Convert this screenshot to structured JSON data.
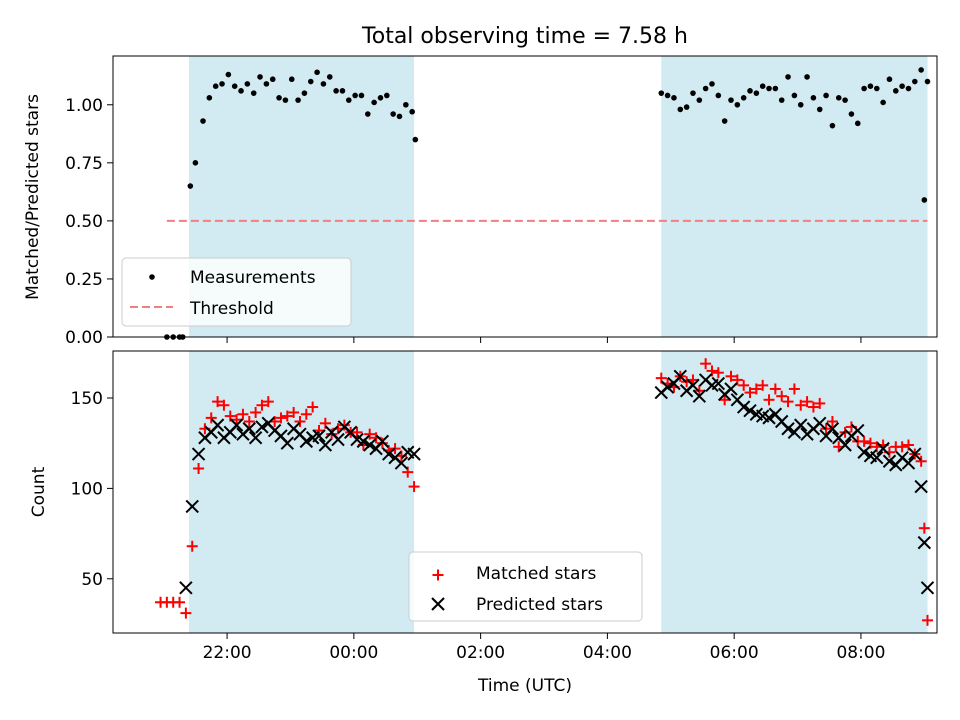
{
  "figure": {
    "title": "Total observing time = 7.58 h",
    "xlabel": "Time (UTC)"
  },
  "colors": {
    "shade": "#add8e6",
    "measurement": "#000000",
    "threshold": "#f08080",
    "matched": "#ff0000",
    "predicted": "#000000"
  },
  "chart_data": [
    {
      "type": "scatter",
      "ylabel": "Matched/Predicted stars",
      "ylim": [
        0,
        1.21
      ],
      "yticks": [
        0.0,
        0.25,
        0.5,
        0.75,
        1.0
      ],
      "ytick_labels": [
        "0.00",
        "0.25",
        "0.50",
        "0.75",
        "1.00"
      ],
      "xlim_hours_utc": [
        20.2,
        33.2
      ],
      "xtick_hours": [
        22,
        24,
        26,
        28,
        30,
        32
      ],
      "xtick_labels": [],
      "shaded_spans_hours": [
        [
          21.4,
          24.95
        ],
        [
          28.85,
          33.05
        ]
      ],
      "legend_position": "lower-left",
      "legend": [
        {
          "label": "Measurements",
          "marker": "dot"
        },
        {
          "label": "Threshold",
          "marker": "dashed-line"
        }
      ],
      "threshold": {
        "value": 0.5,
        "x_range_hours": [
          21.05,
          33.05
        ]
      },
      "series": [
        {
          "name": "Measurements",
          "x": [
            21.05,
            21.15,
            21.25,
            21.3,
            21.42,
            21.5,
            21.62,
            21.72,
            21.82,
            21.92,
            22.02,
            22.12,
            22.22,
            22.32,
            22.42,
            22.52,
            22.62,
            22.72,
            22.82,
            22.92,
            23.02,
            23.12,
            23.22,
            23.32,
            23.42,
            23.52,
            23.62,
            23.72,
            23.82,
            23.92,
            24.02,
            24.12,
            24.22,
            24.32,
            24.42,
            24.52,
            24.62,
            24.72,
            24.82,
            24.92,
            24.97,
            28.85,
            28.95,
            29.05,
            29.15,
            29.25,
            29.35,
            29.45,
            29.55,
            29.65,
            29.75,
            29.85,
            29.95,
            30.05,
            30.15,
            30.25,
            30.35,
            30.45,
            30.55,
            30.65,
            30.75,
            30.85,
            30.95,
            31.05,
            31.15,
            31.25,
            31.35,
            31.45,
            31.55,
            31.65,
            31.75,
            31.85,
            31.95,
            32.05,
            32.15,
            32.25,
            32.35,
            32.45,
            32.55,
            32.65,
            32.75,
            32.85,
            32.95,
            33.05
          ],
          "y": [
            0.0,
            0.0,
            0.0,
            0.0,
            0.65,
            0.75,
            0.93,
            1.03,
            1.08,
            1.09,
            1.13,
            1.08,
            1.06,
            1.09,
            1.05,
            1.12,
            1.09,
            1.11,
            1.03,
            1.02,
            1.11,
            1.02,
            1.05,
            1.1,
            1.14,
            1.09,
            1.12,
            1.06,
            1.06,
            1.02,
            1.04,
            1.04,
            0.96,
            1.01,
            1.03,
            1.04,
            0.96,
            0.95,
            1.0,
            0.97,
            0.85,
            1.05,
            1.04,
            1.03,
            0.98,
            0.99,
            1.05,
            1.02,
            1.07,
            1.09,
            1.04,
            0.93,
            1.02,
            1.0,
            1.03,
            1.06,
            1.05,
            1.08,
            1.07,
            1.07,
            1.02,
            1.12,
            1.04,
            1.0,
            1.12,
            1.03,
            0.98,
            1.04,
            0.91,
            1.03,
            1.02,
            0.96,
            0.92,
            1.07,
            1.08,
            1.07,
            1.01,
            1.11,
            1.06,
            1.08,
            1.07,
            1.1,
            1.15,
            1.1
          ],
          "extra_points": {
            "x": [
              33.0
            ],
            "y": [
              0.59
            ]
          }
        }
      ]
    },
    {
      "type": "scatter",
      "ylabel": "Count",
      "xlabel": "Time (UTC)",
      "ylim": [
        20,
        176
      ],
      "yticks": [
        50,
        100,
        150
      ],
      "ytick_labels": [
        "50",
        "100",
        "150"
      ],
      "xlim_hours_utc": [
        20.2,
        33.2
      ],
      "xtick_hours": [
        22,
        24,
        26,
        28,
        30,
        32
      ],
      "xtick_labels": [
        "22:00",
        "00:00",
        "02:00",
        "04:00",
        "06:00",
        "08:00"
      ],
      "shaded_spans_hours": [
        [
          21.4,
          24.95
        ],
        [
          28.85,
          33.05
        ]
      ],
      "legend_position": "lower-center",
      "legend": [
        {
          "label": "Matched stars",
          "marker": "plus"
        },
        {
          "label": "Predicted stars",
          "marker": "x"
        }
      ],
      "series": [
        {
          "name": "Matched stars",
          "x": [
            20.95,
            21.05,
            21.15,
            21.25,
            21.35,
            21.45,
            21.55,
            21.65,
            21.75,
            21.85,
            21.95,
            22.05,
            22.15,
            22.25,
            22.35,
            22.45,
            22.55,
            22.65,
            22.75,
            22.85,
            22.95,
            23.05,
            23.15,
            23.25,
            23.35,
            23.45,
            23.55,
            23.65,
            23.75,
            23.85,
            23.95,
            24.05,
            24.15,
            24.25,
            24.35,
            24.45,
            24.55,
            24.65,
            24.75,
            24.85,
            24.95,
            28.85,
            28.95,
            29.05,
            29.15,
            29.25,
            29.35,
            29.45,
            29.55,
            29.65,
            29.75,
            29.85,
            29.95,
            30.05,
            30.15,
            30.25,
            30.35,
            30.45,
            30.55,
            30.65,
            30.75,
            30.85,
            30.95,
            31.05,
            31.15,
            31.25,
            31.35,
            31.45,
            31.55,
            31.65,
            31.75,
            31.85,
            31.95,
            32.05,
            32.15,
            32.25,
            32.35,
            32.45,
            32.55,
            32.65,
            32.75,
            32.85,
            32.95,
            33.0,
            33.05
          ],
          "y": [
            37,
            37,
            37,
            37,
            31,
            68,
            111,
            133,
            139,
            148,
            146,
            140,
            138,
            141,
            137,
            142,
            146,
            148,
            137,
            139,
            140,
            142,
            137,
            141,
            145,
            132,
            136,
            130,
            133,
            135,
            131,
            131,
            124,
            130,
            128,
            125,
            121,
            122,
            118,
            109,
            101,
            161,
            158,
            156,
            162,
            159,
            160,
            154,
            169,
            165,
            164,
            149,
            162,
            160,
            157,
            153,
            155,
            157,
            149,
            155,
            151,
            148,
            155,
            146,
            148,
            145,
            147,
            133,
            137,
            123,
            131,
            134,
            126,
            126,
            125,
            123,
            124,
            120,
            123,
            123,
            124,
            119,
            115,
            78,
            27
          ]
        },
        {
          "name": "Predicted stars",
          "x": [
            21.35,
            21.45,
            21.55,
            21.65,
            21.75,
            21.85,
            21.95,
            22.05,
            22.15,
            22.25,
            22.35,
            22.45,
            22.55,
            22.65,
            22.75,
            22.85,
            22.95,
            23.05,
            23.15,
            23.25,
            23.35,
            23.45,
            23.55,
            23.65,
            23.75,
            23.85,
            23.95,
            24.05,
            24.15,
            24.25,
            24.35,
            24.45,
            24.55,
            24.65,
            24.75,
            24.85,
            24.95,
            28.85,
            28.95,
            29.05,
            29.15,
            29.25,
            29.35,
            29.45,
            29.55,
            29.65,
            29.75,
            29.85,
            29.95,
            30.05,
            30.15,
            30.25,
            30.35,
            30.45,
            30.55,
            30.65,
            30.75,
            30.85,
            30.95,
            31.05,
            31.15,
            31.25,
            31.35,
            31.45,
            31.55,
            31.65,
            31.75,
            31.85,
            31.95,
            32.05,
            32.15,
            32.25,
            32.35,
            32.45,
            32.55,
            32.65,
            32.75,
            32.85,
            32.95,
            33.0,
            33.05
          ],
          "y": [
            45,
            90,
            119,
            128,
            131,
            135,
            128,
            131,
            135,
            130,
            133,
            128,
            134,
            136,
            132,
            129,
            125,
            133,
            130,
            126,
            128,
            129,
            124,
            131,
            127,
            134,
            131,
            127,
            126,
            124,
            122,
            126,
            119,
            117,
            114,
            120,
            119,
            153,
            156,
            158,
            162,
            154,
            157,
            151,
            160,
            157,
            158,
            152,
            155,
            149,
            145,
            143,
            141,
            140,
            139,
            141,
            137,
            133,
            131,
            135,
            130,
            133,
            136,
            129,
            133,
            128,
            124,
            129,
            132,
            120,
            118,
            117,
            122,
            115,
            113,
            117,
            114,
            119,
            101,
            70,
            45
          ]
        }
      ]
    }
  ]
}
